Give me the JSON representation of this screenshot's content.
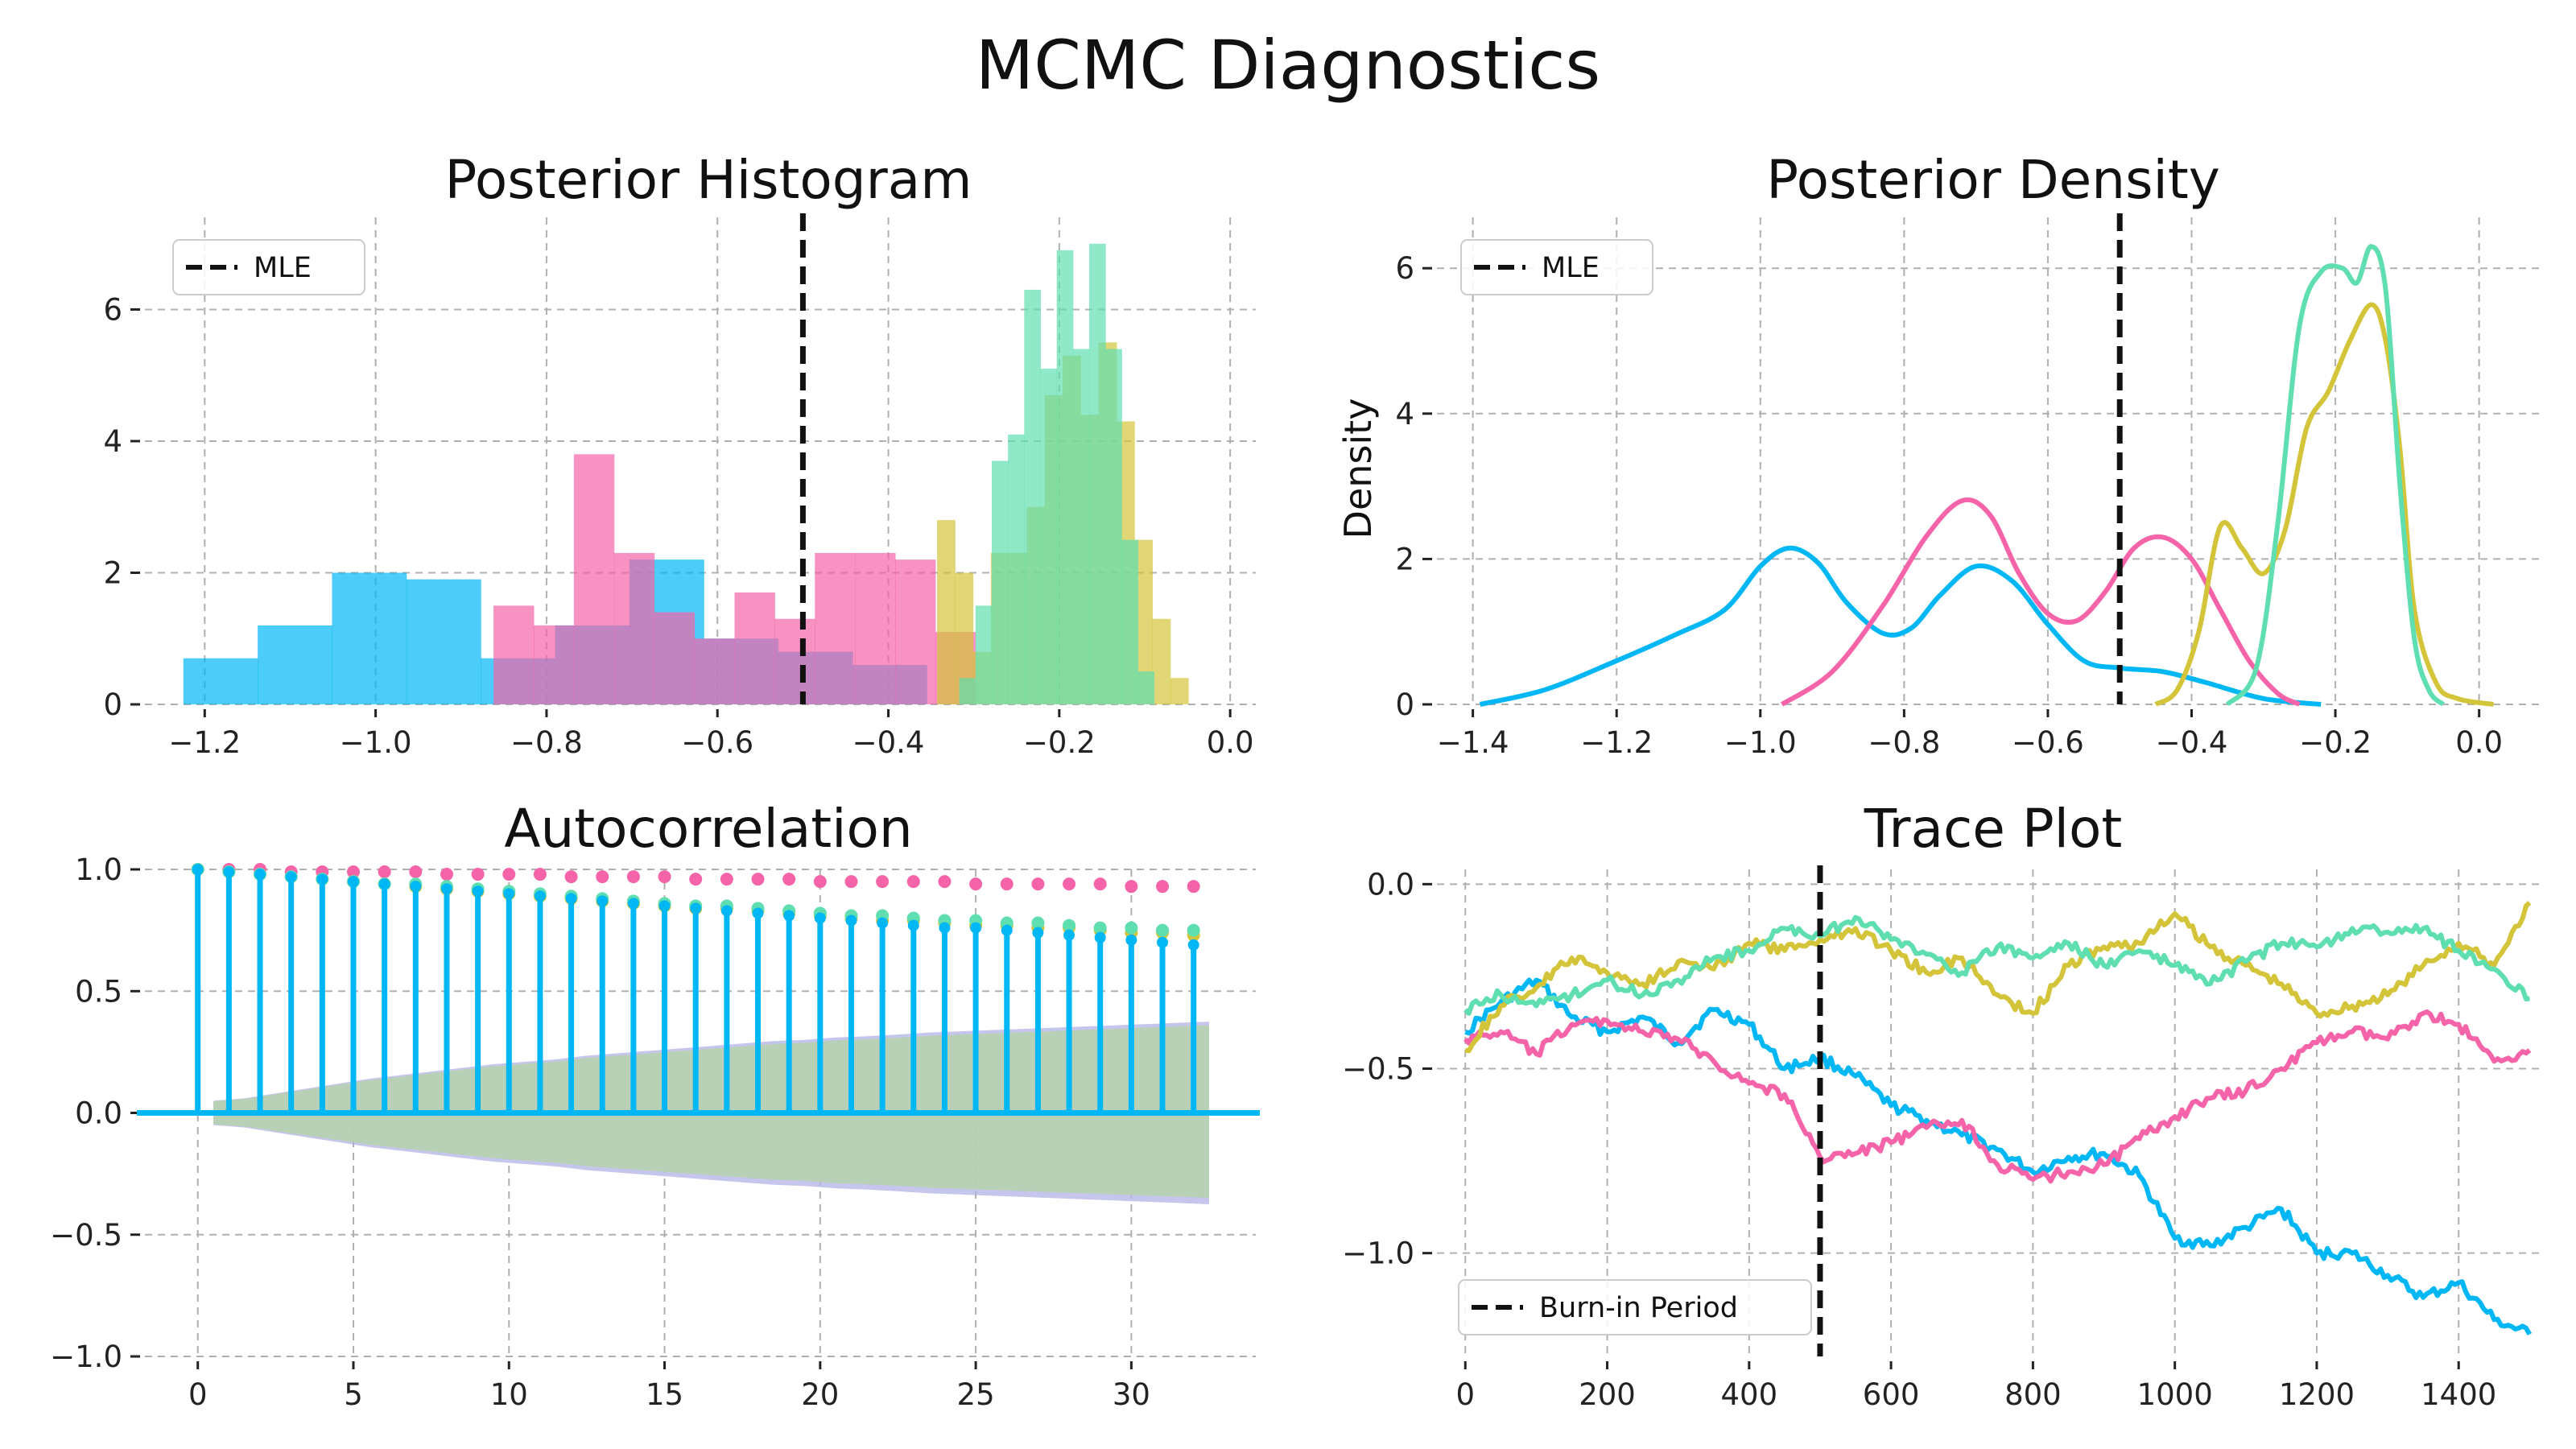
{
  "figure_title": "MCMC Diagnostics",
  "colors": [
    "#00b7f5",
    "#f564a9",
    "#d3c43a",
    "#5fdeaf"
  ],
  "chart_data": [
    {
      "type": "bar",
      "title": "Posterior Histogram",
      "xlabel": "",
      "ylabel": "",
      "xlim": [
        -1.27,
        0.03
      ],
      "ylim": [
        0,
        7.4
      ],
      "xticks": [
        -1.2,
        -1.0,
        -0.8,
        -0.6,
        -0.4,
        -0.2,
        0.0
      ],
      "xtick_labels": [
        "−1.2",
        "−1.0",
        "−0.8",
        "−0.6",
        "−0.4",
        "−0.2",
        "0.0"
      ],
      "yticks": [
        0,
        2,
        4,
        6
      ],
      "ytick_labels": [
        "0",
        "2",
        "4",
        "6"
      ],
      "grid": true,
      "reference_line": {
        "x": -0.5,
        "label": "MLE"
      },
      "legend": {
        "entries": [
          "MLE"
        ],
        "placement": "top-left"
      },
      "series": [
        {
          "color": "#00b7f5",
          "opacity": 0.7,
          "bin_edges": [
            -1.225,
            -1.138,
            -1.051,
            -0.964,
            -0.877,
            -0.79,
            -0.703,
            -0.616,
            -0.529,
            -0.442,
            -0.355
          ],
          "values": [
            0.7,
            1.2,
            2.0,
            1.9,
            0.7,
            1.2,
            2.2,
            1.0,
            0.8,
            0.6
          ]
        },
        {
          "color": "#f564a9",
          "opacity": 0.7,
          "bin_edges": [
            -0.862,
            -0.815,
            -0.768,
            -0.721,
            -0.674,
            -0.627,
            -0.58,
            -0.533,
            -0.486,
            -0.439,
            -0.392,
            -0.345,
            -0.298
          ],
          "values": [
            1.5,
            1.2,
            3.8,
            2.3,
            1.4,
            1.0,
            1.7,
            1.3,
            2.3,
            2.3,
            2.2,
            1.1
          ]
        },
        {
          "color": "#d3c43a",
          "opacity": 0.7,
          "bin_edges": [
            -0.343,
            -0.322,
            -0.301,
            -0.28,
            -0.259,
            -0.238,
            -0.217,
            -0.196,
            -0.175,
            -0.154,
            -0.133,
            -0.112,
            -0.091,
            -0.07,
            -0.049
          ],
          "values": [
            2.8,
            2.0,
            0.8,
            2.3,
            2.3,
            3.0,
            4.7,
            5.3,
            4.4,
            5.5,
            4.3,
            2.5,
            1.3,
            0.4
          ]
        },
        {
          "color": "#5fdeaf",
          "opacity": 0.7,
          "bin_edges": [
            -0.317,
            -0.298,
            -0.279,
            -0.26,
            -0.241,
            -0.222,
            -0.203,
            -0.184,
            -0.165,
            -0.146,
            -0.127,
            -0.108,
            -0.089
          ],
          "values": [
            0.4,
            1.5,
            3.7,
            4.1,
            6.3,
            5.1,
            6.9,
            5.4,
            7.0,
            5.4,
            2.5,
            0.5
          ]
        }
      ]
    },
    {
      "type": "line",
      "title": "Posterior Density",
      "xlabel": "",
      "ylabel": "Density",
      "xlim": [
        -1.45,
        0.09
      ],
      "ylim": [
        0,
        6.7
      ],
      "xticks": [
        -1.4,
        -1.2,
        -1.0,
        -0.8,
        -0.6,
        -0.4,
        -0.2,
        0.0
      ],
      "xtick_labels": [
        "−1.4",
        "−1.2",
        "−1.0",
        "−0.8",
        "−0.6",
        "−0.4",
        "−0.2",
        "0.0"
      ],
      "yticks": [
        0,
        2,
        4,
        6
      ],
      "ytick_labels": [
        "0",
        "2",
        "4",
        "6"
      ],
      "grid": true,
      "reference_line": {
        "x": -0.5,
        "label": "MLE"
      },
      "legend": {
        "entries": [
          "MLE"
        ],
        "placement": "top-left"
      },
      "series": [
        {
          "color": "#00b7f5",
          "points": [
            [
              -1.39,
              0.0
            ],
            [
              -1.3,
              0.2
            ],
            [
              -1.2,
              0.6
            ],
            [
              -1.12,
              0.95
            ],
            [
              -1.05,
              1.3
            ],
            [
              -1.0,
              1.9
            ],
            [
              -0.96,
              2.15
            ],
            [
              -0.92,
              1.95
            ],
            [
              -0.88,
              1.4
            ],
            [
              -0.83,
              0.98
            ],
            [
              -0.79,
              1.05
            ],
            [
              -0.75,
              1.5
            ],
            [
              -0.7,
              1.9
            ],
            [
              -0.65,
              1.7
            ],
            [
              -0.6,
              1.1
            ],
            [
              -0.55,
              0.6
            ],
            [
              -0.5,
              0.5
            ],
            [
              -0.44,
              0.45
            ],
            [
              -0.38,
              0.3
            ],
            [
              -0.3,
              0.08
            ],
            [
              -0.22,
              0.0
            ]
          ]
        },
        {
          "color": "#f564a9",
          "points": [
            [
              -0.97,
              0.0
            ],
            [
              -0.9,
              0.45
            ],
            [
              -0.83,
              1.35
            ],
            [
              -0.77,
              2.3
            ],
            [
              -0.72,
              2.8
            ],
            [
              -0.68,
              2.6
            ],
            [
              -0.64,
              1.8
            ],
            [
              -0.6,
              1.25
            ],
            [
              -0.56,
              1.15
            ],
            [
              -0.52,
              1.55
            ],
            [
              -0.48,
              2.15
            ],
            [
              -0.44,
              2.3
            ],
            [
              -0.4,
              2.0
            ],
            [
              -0.36,
              1.3
            ],
            [
              -0.32,
              0.6
            ],
            [
              -0.28,
              0.15
            ],
            [
              -0.25,
              0.0
            ]
          ]
        },
        {
          "color": "#d3c43a",
          "points": [
            [
              -0.45,
              0.0
            ],
            [
              -0.42,
              0.2
            ],
            [
              -0.39,
              1.0
            ],
            [
              -0.36,
              2.45
            ],
            [
              -0.33,
              2.15
            ],
            [
              -0.3,
              1.8
            ],
            [
              -0.27,
              2.4
            ],
            [
              -0.24,
              3.8
            ],
            [
              -0.21,
              4.3
            ],
            [
              -0.18,
              5.0
            ],
            [
              -0.15,
              5.5
            ],
            [
              -0.13,
              5.0
            ],
            [
              -0.11,
              3.5
            ],
            [
              -0.09,
              1.3
            ],
            [
              -0.06,
              0.3
            ],
            [
              -0.03,
              0.08
            ],
            [
              0.02,
              0.0
            ]
          ]
        },
        {
          "color": "#5fdeaf",
          "points": [
            [
              -0.35,
              0.0
            ],
            [
              -0.31,
              0.5
            ],
            [
              -0.28,
              2.5
            ],
            [
              -0.25,
              5.2
            ],
            [
              -0.22,
              5.95
            ],
            [
              -0.19,
              6.0
            ],
            [
              -0.17,
              5.8
            ],
            [
              -0.15,
              6.3
            ],
            [
              -0.13,
              5.7
            ],
            [
              -0.11,
              3.0
            ],
            [
              -0.09,
              0.9
            ],
            [
              -0.07,
              0.2
            ],
            [
              -0.05,
              0.0
            ]
          ]
        }
      ]
    },
    {
      "type": "stem",
      "title": "Autocorrelation",
      "xlabel": "",
      "ylabel": "",
      "xlim": [
        -1.7,
        34.0
      ],
      "ylim": [
        -1.0,
        1.0
      ],
      "xticks": [
        0,
        5,
        10,
        15,
        20,
        25,
        30
      ],
      "xtick_labels": [
        "0",
        "5",
        "10",
        "15",
        "20",
        "25",
        "30"
      ],
      "yticks": [
        -1.0,
        -0.5,
        0.0,
        0.5,
        1.0
      ],
      "ytick_labels": [
        "−1.0",
        "−0.5",
        "0.0",
        "0.5",
        "1.0"
      ],
      "grid": true,
      "lags": [
        0,
        1,
        2,
        3,
        4,
        5,
        6,
        7,
        8,
        9,
        10,
        11,
        12,
        13,
        14,
        15,
        16,
        17,
        18,
        19,
        20,
        21,
        22,
        23,
        24,
        25,
        26,
        27,
        28,
        29,
        30,
        31,
        32
      ],
      "confidence_band_upper": [
        0.05,
        0.06,
        0.08,
        0.1,
        0.12,
        0.14,
        0.155,
        0.17,
        0.185,
        0.2,
        0.21,
        0.22,
        0.235,
        0.245,
        0.255,
        0.265,
        0.275,
        0.285,
        0.295,
        0.3,
        0.31,
        0.315,
        0.322,
        0.33,
        0.335,
        0.34,
        0.345,
        0.35,
        0.355,
        0.36,
        0.365,
        0.37,
        0.375
      ],
      "series": [
        {
          "color": "#00b7f5",
          "values": [
            1.0,
            0.99,
            0.98,
            0.97,
            0.96,
            0.95,
            0.94,
            0.93,
            0.92,
            0.91,
            0.9,
            0.89,
            0.88,
            0.87,
            0.86,
            0.85,
            0.84,
            0.83,
            0.82,
            0.81,
            0.8,
            0.79,
            0.78,
            0.77,
            0.76,
            0.76,
            0.75,
            0.74,
            0.73,
            0.72,
            0.71,
            0.7,
            0.69
          ]
        },
        {
          "color": "#f564a9",
          "values": [
            1.0,
            1.0,
            1.0,
            0.99,
            0.99,
            0.99,
            0.99,
            0.99,
            0.98,
            0.98,
            0.98,
            0.98,
            0.97,
            0.97,
            0.97,
            0.97,
            0.96,
            0.96,
            0.96,
            0.96,
            0.95,
            0.95,
            0.95,
            0.95,
            0.95,
            0.94,
            0.94,
            0.94,
            0.94,
            0.94,
            0.93,
            0.93,
            0.93
          ]
        },
        {
          "color": "#d3c43a",
          "values": [
            1.0,
            0.99,
            0.98,
            0.97,
            0.96,
            0.95,
            0.94,
            0.93,
            0.92,
            0.91,
            0.9,
            0.89,
            0.88,
            0.87,
            0.86,
            0.85,
            0.84,
            0.84,
            0.83,
            0.82,
            0.81,
            0.8,
            0.79,
            0.79,
            0.78,
            0.77,
            0.77,
            0.76,
            0.76,
            0.75,
            0.74,
            0.74,
            0.73
          ]
        },
        {
          "color": "#5fdeaf",
          "values": [
            1.0,
            0.99,
            0.98,
            0.97,
            0.96,
            0.95,
            0.94,
            0.94,
            0.93,
            0.92,
            0.91,
            0.9,
            0.89,
            0.88,
            0.87,
            0.86,
            0.85,
            0.85,
            0.84,
            0.83,
            0.82,
            0.81,
            0.81,
            0.8,
            0.79,
            0.79,
            0.78,
            0.78,
            0.77,
            0.76,
            0.76,
            0.75,
            0.75
          ]
        }
      ]
    },
    {
      "type": "line",
      "title": "Trace Plot",
      "xlabel": "",
      "ylabel": "",
      "xlim": [
        -40,
        1520
      ],
      "ylim": [
        -1.28,
        0.04
      ],
      "xticks": [
        0,
        200,
        400,
        600,
        800,
        1000,
        1200,
        1400
      ],
      "xtick_labels": [
        "0",
        "200",
        "400",
        "600",
        "800",
        "1000",
        "1200",
        "1400"
      ],
      "yticks": [
        -1.0,
        -0.5,
        0.0
      ],
      "ytick_labels": [
        "−1.0",
        "−0.5",
        "0.0"
      ],
      "grid": true,
      "reference_line": {
        "x": 500,
        "label": "Burn-in Period"
      },
      "legend": {
        "entries": [
          "Burn-in Period"
        ],
        "placement": "bottom-left"
      },
      "x": [
        0,
        50,
        100,
        150,
        200,
        250,
        300,
        350,
        400,
        450,
        500,
        550,
        600,
        650,
        700,
        750,
        800,
        850,
        900,
        950,
        1000,
        1050,
        1100,
        1150,
        1200,
        1250,
        1300,
        1350,
        1400,
        1450,
        1500
      ],
      "series": [
        {
          "color": "#00b7f5",
          "values": [
            -0.4,
            -0.32,
            -0.26,
            -0.36,
            -0.4,
            -0.36,
            -0.43,
            -0.34,
            -0.38,
            -0.5,
            -0.47,
            -0.52,
            -0.6,
            -0.64,
            -0.68,
            -0.72,
            -0.78,
            -0.74,
            -0.73,
            -0.79,
            -0.96,
            -0.98,
            -0.93,
            -0.88,
            -1.0,
            -1.0,
            -1.06,
            -1.12,
            -1.08,
            -1.18,
            -1.22
          ]
        },
        {
          "color": "#f564a9",
          "values": [
            -0.42,
            -0.4,
            -0.46,
            -0.38,
            -0.37,
            -0.4,
            -0.42,
            -0.48,
            -0.54,
            -0.57,
            -0.74,
            -0.73,
            -0.7,
            -0.66,
            -0.64,
            -0.76,
            -0.8,
            -0.78,
            -0.76,
            -0.69,
            -0.63,
            -0.58,
            -0.56,
            -0.5,
            -0.43,
            -0.4,
            -0.42,
            -0.35,
            -0.38,
            -0.48,
            -0.45
          ]
        },
        {
          "color": "#d3c43a",
          "values": [
            -0.45,
            -0.33,
            -0.28,
            -0.2,
            -0.24,
            -0.27,
            -0.21,
            -0.23,
            -0.16,
            -0.18,
            -0.15,
            -0.12,
            -0.18,
            -0.24,
            -0.2,
            -0.3,
            -0.35,
            -0.22,
            -0.17,
            -0.16,
            -0.08,
            -0.17,
            -0.22,
            -0.27,
            -0.35,
            -0.33,
            -0.3,
            -0.22,
            -0.16,
            -0.22,
            -0.05
          ]
        },
        {
          "color": "#5fdeaf",
          "values": [
            -0.34,
            -0.3,
            -0.33,
            -0.3,
            -0.26,
            -0.3,
            -0.26,
            -0.2,
            -0.18,
            -0.12,
            -0.14,
            -0.09,
            -0.15,
            -0.19,
            -0.24,
            -0.17,
            -0.2,
            -0.16,
            -0.22,
            -0.18,
            -0.22,
            -0.27,
            -0.21,
            -0.16,
            -0.17,
            -0.12,
            -0.13,
            -0.12,
            -0.18,
            -0.23,
            -0.31
          ]
        }
      ]
    }
  ]
}
